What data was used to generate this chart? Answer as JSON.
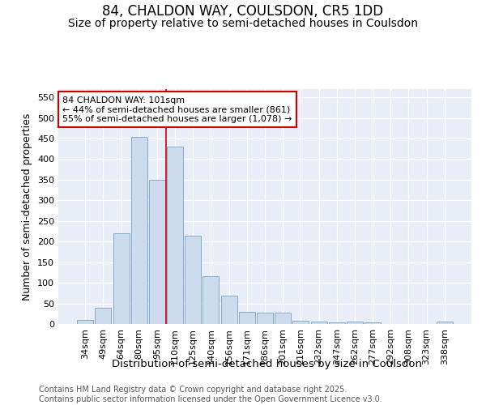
{
  "title": "84, CHALDON WAY, COULSDON, CR5 1DD",
  "subtitle": "Size of property relative to semi-detached houses in Coulsdon",
  "xlabel": "Distribution of semi-detached houses by size in Coulsdon",
  "ylabel": "Number of semi-detached properties",
  "categories": [
    "34sqm",
    "49sqm",
    "64sqm",
    "80sqm",
    "95sqm",
    "110sqm",
    "125sqm",
    "140sqm",
    "156sqm",
    "171sqm",
    "186sqm",
    "201sqm",
    "216sqm",
    "232sqm",
    "247sqm",
    "262sqm",
    "277sqm",
    "292sqm",
    "308sqm",
    "323sqm",
    "338sqm"
  ],
  "values": [
    10,
    40,
    220,
    455,
    350,
    430,
    215,
    115,
    68,
    30,
    28,
    27,
    8,
    5,
    3,
    5,
    3,
    0,
    0,
    0,
    5
  ],
  "bar_color": "#ccdcee",
  "bar_edge_color": "#88aac8",
  "vline_x": 4.5,
  "vline_color": "#cc0000",
  "annotation_line1": "84 CHALDON WAY: 101sqm",
  "annotation_line2": "← 44% of semi-detached houses are smaller (861)",
  "annotation_line3": "55% of semi-detached houses are larger (1,078) →",
  "annotation_box_color": "#ffffff",
  "annotation_box_edge": "#cc0000",
  "ylim": [
    0,
    570
  ],
  "yticks": [
    0,
    50,
    100,
    150,
    200,
    250,
    300,
    350,
    400,
    450,
    500,
    550
  ],
  "bg_color": "#ffffff",
  "plot_bg_color": "#e8edf8",
  "footer_text": "Contains HM Land Registry data © Crown copyright and database right 2025.\nContains public sector information licensed under the Open Government Licence v3.0.",
  "title_fontsize": 12,
  "subtitle_fontsize": 10,
  "xlabel_fontsize": 9.5,
  "ylabel_fontsize": 9,
  "tick_fontsize": 8,
  "annot_fontsize": 8,
  "footer_fontsize": 7
}
